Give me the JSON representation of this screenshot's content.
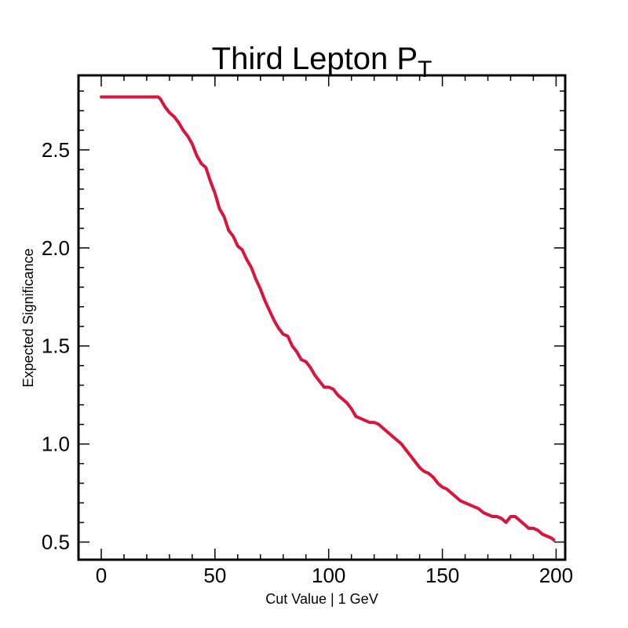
{
  "chart_data": {
    "type": "line",
    "title": "Third Lepton P",
    "title_subscript": "T",
    "xlabel": "Cut Value | 1 GeV",
    "ylabel": "Expected Significance",
    "xlim": [
      -10,
      204
    ],
    "ylim": [
      0.41,
      2.88
    ],
    "x_ticks": [
      0,
      50,
      100,
      150,
      200
    ],
    "x_tick_labels": [
      "0",
      "50",
      "100",
      "150",
      "200"
    ],
    "y_ticks": [
      0.5,
      1.0,
      1.5,
      2.0,
      2.5
    ],
    "y_tick_labels": [
      "0.5",
      "1.0",
      "1.5",
      "2.0",
      "2.5"
    ],
    "line_color": "#dc143c",
    "grid": false,
    "series": [
      {
        "name": "Expected Significance",
        "x": [
          0,
          5,
          10,
          15,
          20,
          25,
          26,
          28,
          30,
          32,
          34,
          36,
          38,
          40,
          42,
          44,
          46,
          48,
          50,
          52,
          54,
          56,
          58,
          60,
          62,
          64,
          66,
          68,
          70,
          72,
          74,
          76,
          78,
          80,
          82,
          84,
          86,
          88,
          90,
          92,
          94,
          96,
          98,
          100,
          102,
          104,
          106,
          108,
          110,
          112,
          114,
          116,
          118,
          120,
          122,
          124,
          126,
          128,
          130,
          132,
          134,
          136,
          138,
          140,
          142,
          144,
          146,
          148,
          150,
          152,
          154,
          156,
          158,
          160,
          162,
          164,
          166,
          168,
          170,
          172,
          174,
          176,
          178,
          180,
          182,
          184,
          186,
          188,
          190,
          192,
          194,
          196,
          198,
          199
        ],
        "y": [
          2.77,
          2.77,
          2.77,
          2.77,
          2.77,
          2.77,
          2.76,
          2.72,
          2.69,
          2.67,
          2.64,
          2.6,
          2.57,
          2.53,
          2.47,
          2.43,
          2.41,
          2.34,
          2.28,
          2.2,
          2.16,
          2.09,
          2.06,
          2.01,
          1.99,
          1.94,
          1.9,
          1.84,
          1.79,
          1.73,
          1.68,
          1.63,
          1.59,
          1.56,
          1.55,
          1.5,
          1.47,
          1.43,
          1.42,
          1.39,
          1.35,
          1.32,
          1.29,
          1.29,
          1.28,
          1.25,
          1.23,
          1.21,
          1.18,
          1.14,
          1.13,
          1.12,
          1.11,
          1.11,
          1.1,
          1.08,
          1.06,
          1.04,
          1.02,
          1.0,
          0.97,
          0.94,
          0.91,
          0.88,
          0.86,
          0.85,
          0.83,
          0.8,
          0.78,
          0.77,
          0.75,
          0.73,
          0.71,
          0.7,
          0.69,
          0.68,
          0.67,
          0.65,
          0.64,
          0.63,
          0.63,
          0.62,
          0.6,
          0.63,
          0.63,
          0.61,
          0.59,
          0.57,
          0.57,
          0.56,
          0.54,
          0.53,
          0.52,
          0.51
        ]
      }
    ]
  }
}
